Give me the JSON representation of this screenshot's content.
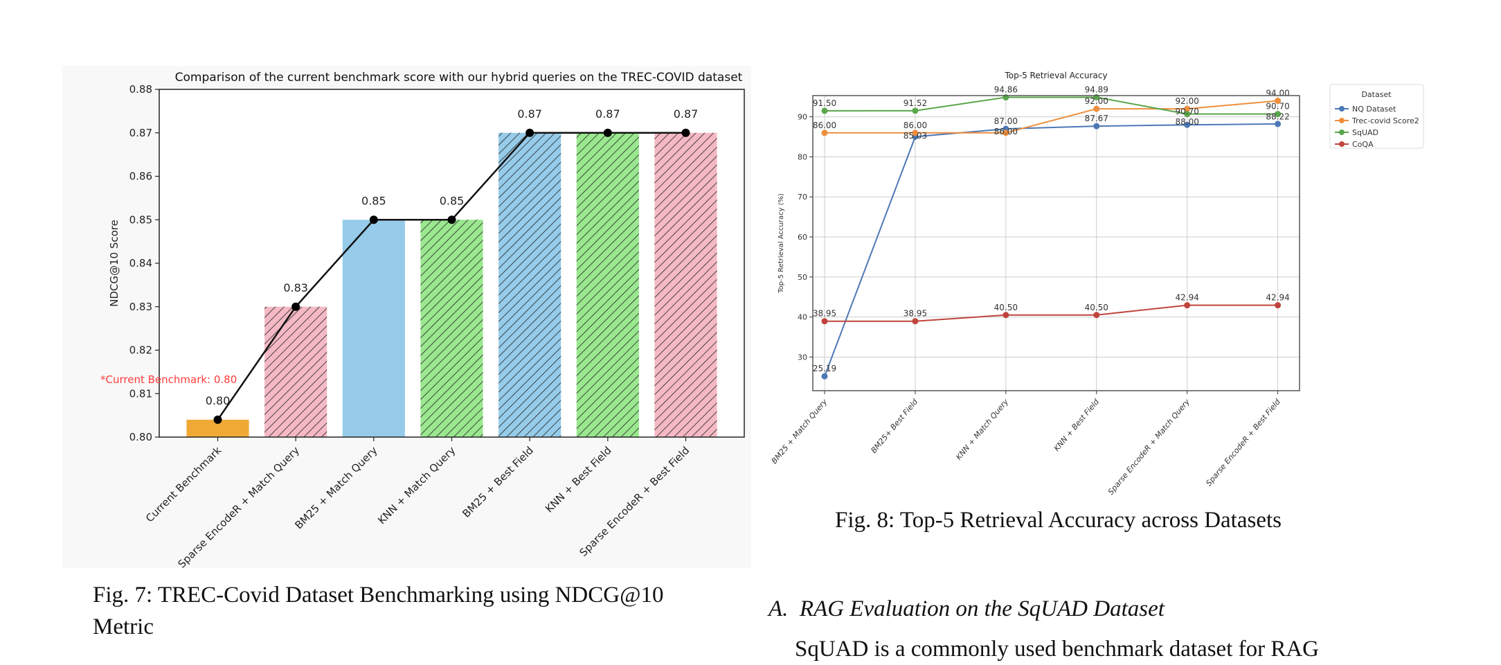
{
  "chart_data": [
    {
      "type": "bar",
      "title": "Comparison of the current benchmark score with our hybrid queries on the TREC-COVID dataset",
      "xlabel": "",
      "ylabel": "NDCG@10 Score",
      "ylim": [
        0.8,
        0.88
      ],
      "yticks": [
        "0.80",
        "0.81",
        "0.82",
        "0.83",
        "0.84",
        "0.85",
        "0.86",
        "0.87",
        "0.88"
      ],
      "categories": [
        "Current Benchmark",
        "Sparse EncodeR + Match Query",
        "BM25 + Match Query",
        "KNN + Match Query",
        "BM25 + Best Field",
        "KNN + Best Field",
        "Sparse EncodeR + Best Field"
      ],
      "values": [
        0.804,
        0.83,
        0.85,
        0.85,
        0.87,
        0.87,
        0.87
      ],
      "data_labels": [
        "0.80",
        "0.83",
        "0.85",
        "0.85",
        "0.87",
        "0.87",
        "0.87"
      ],
      "bar_colors": [
        "#f0a935",
        "#f4b9c4",
        "#96cbe9",
        "#9ae78f",
        "#96cbe9",
        "#9ae78f",
        "#f4b9c4"
      ],
      "hatched": [
        false,
        true,
        false,
        true,
        true,
        true,
        true
      ],
      "line_overlay": {
        "color": "#111111",
        "marker": "circle"
      },
      "annotation": {
        "text": "*Current Benchmark: 0.80",
        "color": "#ff3b3b"
      },
      "grid": false
    },
    {
      "type": "line",
      "title": "Top-5 Retrieval Accuracy",
      "xlabel": "",
      "ylabel": "Top-5 Retrieval Accuracy (%)",
      "ylim": [
        21.6,
        95.3
      ],
      "yticks": [
        30,
        40,
        50,
        60,
        70,
        80,
        90
      ],
      "categories": [
        "BM25 + Match Query",
        "BM25+ Best Field",
        "KNN + Match Query",
        "KNN + Best Field",
        "Sparse EncodeR + Match Query",
        "Sparse EncodeR + Best Field"
      ],
      "grid": true,
      "legend": {
        "title": "Dataset",
        "placement": "outside-top-right"
      },
      "series": [
        {
          "name": "NQ Dataset",
          "color": "#4c78b5",
          "values": [
            25.19,
            85.03,
            87.0,
            87.67,
            88.0,
            88.22
          ],
          "labels": [
            "25.19",
            "85.03",
            "87.00",
            "87.67",
            "88.00",
            "88.22"
          ]
        },
        {
          "name": "Trec-covid Score2",
          "color": "#ee8f3e",
          "values": [
            86.0,
            86.0,
            86.0,
            92.0,
            92.0,
            94.0
          ],
          "labels": [
            "86.00",
            "86.00",
            "86.00",
            "92.00",
            "92.00",
            "94.00"
          ]
        },
        {
          "name": "SqUAD",
          "color": "#5aa64a",
          "values": [
            91.5,
            91.52,
            94.86,
            94.89,
            90.7,
            90.7
          ],
          "labels": [
            "91.50",
            "91.52",
            "94.86",
            "94.89",
            "90.70",
            "90.70"
          ]
        },
        {
          "name": "CoQA",
          "color": "#c0443c",
          "values": [
            38.95,
            38.95,
            40.5,
            40.5,
            42.94,
            42.94
          ],
          "labels": [
            "38.95",
            "38.95",
            "40.50",
            "40.50",
            "42.94",
            "42.94"
          ]
        }
      ]
    }
  ],
  "captions": {
    "fig7_line1": "Fig. 7: TREC-Covid Dataset Benchmarking using NDCG@10",
    "fig7_line2": "Metric",
    "fig8": "Fig. 8: Top-5 Retrieval Accuracy across Datasets"
  },
  "section": {
    "heading": "A.  RAG Evaluation on the SqUAD Dataset",
    "body_start": "SqUAD is a commonly used benchmark dataset for RAG"
  }
}
